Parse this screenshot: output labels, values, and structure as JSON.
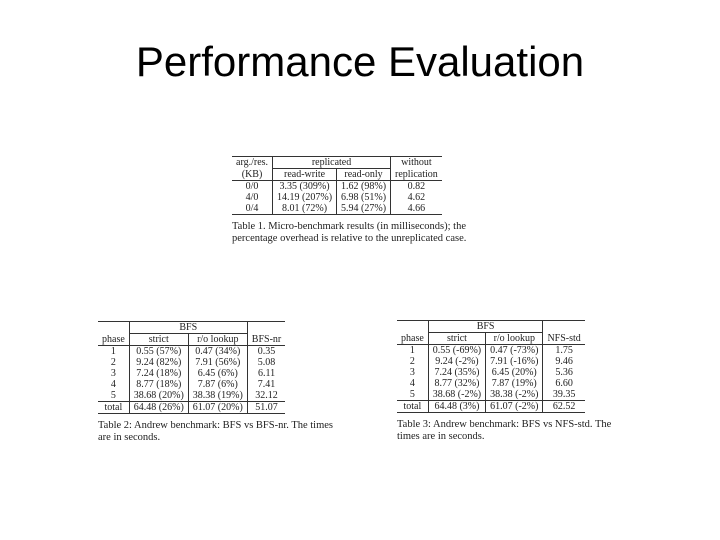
{
  "slide": {
    "title": "Performance Evaluation"
  },
  "table1": {
    "header_row1": {
      "col1": "arg./res.",
      "group": "replicated",
      "col_last": "without"
    },
    "header_row2": {
      "col1": "(KB)",
      "sub1": "read-write",
      "sub2": "read-only",
      "col_last": "replication"
    },
    "rows": [
      {
        "label": "0/0",
        "rw": "3.35 (309%)",
        "ro": "1.62 (98%)",
        "norep": "0.82"
      },
      {
        "label": "4/0",
        "rw": "14.19 (207%)",
        "ro": "6.98 (51%)",
        "norep": "4.62"
      },
      {
        "label": "0/4",
        "rw": "8.01 (72%)",
        "ro": "5.94 (27%)",
        "norep": "4.66"
      }
    ],
    "caption_line1": "Table 1. Micro-benchmark results (in milliseconds); the",
    "caption_line2": "percentage overhead is relative to the unreplicated case."
  },
  "table2": {
    "group": "BFS",
    "headers": {
      "phase": "phase",
      "strict": "strict",
      "ro": "r/o lookup",
      "last": "BFS-nr"
    },
    "rows": [
      {
        "phase": "1",
        "strict": "0.55 (57%)",
        "ro": "0.47 (34%)",
        "last": "0.35"
      },
      {
        "phase": "2",
        "strict": "9.24 (82%)",
        "ro": "7.91 (56%)",
        "last": "5.08"
      },
      {
        "phase": "3",
        "strict": "7.24 (18%)",
        "ro": "6.45 (6%)",
        "last": "6.11"
      },
      {
        "phase": "4",
        "strict": "8.77 (18%)",
        "ro": "7.87 (6%)",
        "last": "7.41"
      },
      {
        "phase": "5",
        "strict": "38.68 (20%)",
        "ro": "38.38 (19%)",
        "last": "32.12"
      }
    ],
    "total": {
      "phase": "total",
      "strict": "64.48 (26%)",
      "ro": "61.07 (20%)",
      "last": "51.07"
    },
    "caption_line1": "Table 2: Andrew benchmark: BFS vs BFS-nr. The times",
    "caption_line2": "are in seconds."
  },
  "table3": {
    "group": "BFS",
    "headers": {
      "phase": "phase",
      "strict": "strict",
      "ro": "r/o lookup",
      "last": "NFS-std"
    },
    "rows": [
      {
        "phase": "1",
        "strict": "0.55 (-69%)",
        "ro": "0.47 (-73%)",
        "last": "1.75"
      },
      {
        "phase": "2",
        "strict": "9.24 (-2%)",
        "ro": "7.91 (-16%)",
        "last": "9.46"
      },
      {
        "phase": "3",
        "strict": "7.24 (35%)",
        "ro": "6.45 (20%)",
        "last": "5.36"
      },
      {
        "phase": "4",
        "strict": "8.77 (32%)",
        "ro": "7.87 (19%)",
        "last": "6.60"
      },
      {
        "phase": "5",
        "strict": "38.68 (-2%)",
        "ro": "38.38 (-2%)",
        "last": "39.35"
      }
    ],
    "total": {
      "phase": "total",
      "strict": "64.48 (3%)",
      "ro": "61.07 (-2%)",
      "last": "62.52"
    },
    "caption_line1": "Table 3: Andrew benchmark: BFS vs NFS-std. The",
    "caption_line2": "times are in seconds."
  }
}
